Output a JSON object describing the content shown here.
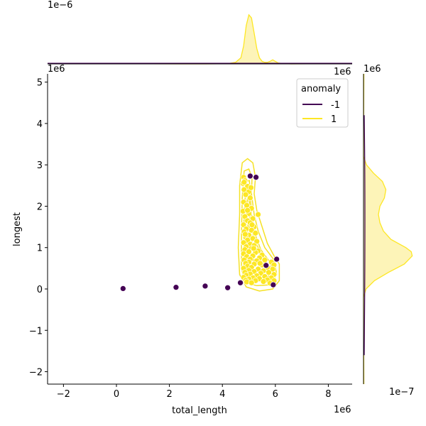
{
  "chart_data": {
    "type": "scatter",
    "xlabel": "total_length",
    "ylabel": "longest",
    "x_offset_label": "1e6",
    "y_offset_label": "1e6",
    "top_marginal_offset_label": "1e−6",
    "right_marginal_offset_label": "1e−7",
    "xlim": [
      -2.6,
      8.9
    ],
    "ylim": [
      -2.3,
      5.2
    ],
    "xticks": [
      -2,
      0,
      2,
      4,
      6,
      8
    ],
    "yticks": [
      -2,
      -1,
      0,
      1,
      2,
      3,
      4,
      5
    ],
    "xtick_labels": [
      "−2",
      "0",
      "2",
      "4",
      "6",
      "8"
    ],
    "ytick_labels": [
      "−2",
      "−1",
      "0",
      "1",
      "2",
      "3",
      "4",
      "5"
    ],
    "legend": {
      "title": "anomaly",
      "placement": "upper-right",
      "entries": [
        {
          "label": "-1",
          "color": "#440154"
        },
        {
          "label": "1",
          "color": "#fde725"
        }
      ]
    },
    "colors": {
      "anomaly": "#440154",
      "normal": "#fde725",
      "contour": "#f5e126",
      "marginal_fill": "#fdf4b8"
    },
    "series": [
      {
        "name": "-1",
        "color": "#440154",
        "points": [
          [
            0.25,
            0.01
          ],
          [
            2.25,
            0.04
          ],
          [
            3.35,
            0.07
          ],
          [
            4.2,
            0.03
          ],
          [
            4.68,
            0.15
          ],
          [
            5.05,
            2.73
          ],
          [
            5.27,
            2.7
          ],
          [
            5.92,
            0.1
          ],
          [
            6.05,
            0.72
          ],
          [
            5.65,
            0.57
          ]
        ]
      },
      {
        "name": "1",
        "color": "#fde725",
        "points": [
          [
            4.8,
            2.7
          ],
          [
            4.85,
            2.62
          ],
          [
            4.78,
            2.55
          ],
          [
            4.95,
            2.48
          ],
          [
            4.82,
            2.4
          ],
          [
            5.0,
            2.35
          ],
          [
            4.88,
            2.28
          ],
          [
            5.05,
            2.2
          ],
          [
            4.8,
            2.1
          ],
          [
            4.92,
            2.02
          ],
          [
            5.1,
            1.95
          ],
          [
            4.78,
            1.88
          ],
          [
            5.0,
            1.82
          ],
          [
            5.35,
            1.8
          ],
          [
            4.85,
            1.75
          ],
          [
            5.15,
            1.7
          ],
          [
            4.95,
            1.65
          ],
          [
            5.05,
            1.6
          ],
          [
            4.8,
            1.55
          ],
          [
            5.2,
            1.5
          ],
          [
            4.9,
            1.45
          ],
          [
            5.1,
            1.42
          ],
          [
            4.82,
            1.38
          ],
          [
            5.25,
            1.35
          ],
          [
            5.0,
            1.3
          ],
          [
            4.88,
            1.25
          ],
          [
            5.15,
            1.22
          ],
          [
            4.95,
            1.18
          ],
          [
            5.3,
            1.15
          ],
          [
            4.8,
            1.12
          ],
          [
            5.05,
            1.08
          ],
          [
            5.2,
            1.05
          ],
          [
            4.9,
            1.02
          ],
          [
            5.1,
            0.98
          ],
          [
            4.85,
            0.95
          ],
          [
            5.35,
            0.92
          ],
          [
            5.0,
            0.9
          ],
          [
            5.25,
            0.88
          ],
          [
            4.8,
            0.85
          ],
          [
            5.5,
            0.82
          ],
          [
            5.15,
            0.8
          ],
          [
            4.92,
            0.78
          ],
          [
            5.4,
            0.75
          ],
          [
            5.05,
            0.72
          ],
          [
            4.82,
            0.7
          ],
          [
            5.6,
            0.7
          ],
          [
            5.3,
            0.68
          ],
          [
            5.0,
            0.65
          ],
          [
            5.85,
            0.65
          ],
          [
            4.88,
            0.62
          ],
          [
            5.2,
            0.6
          ],
          [
            5.5,
            0.58
          ],
          [
            5.95,
            0.58
          ],
          [
            4.95,
            0.55
          ],
          [
            5.1,
            0.52
          ],
          [
            5.7,
            0.52
          ],
          [
            4.8,
            0.5
          ],
          [
            5.35,
            0.48
          ],
          [
            5.9,
            0.48
          ],
          [
            5.0,
            0.45
          ],
          [
            5.55,
            0.44
          ],
          [
            5.2,
            0.42
          ],
          [
            4.85,
            0.4
          ],
          [
            5.75,
            0.4
          ],
          [
            5.45,
            0.38
          ],
          [
            5.05,
            0.36
          ],
          [
            5.95,
            0.35
          ],
          [
            4.9,
            0.33
          ],
          [
            5.3,
            0.32
          ],
          [
            5.6,
            0.3
          ],
          [
            4.8,
            0.28
          ],
          [
            5.15,
            0.27
          ],
          [
            5.85,
            0.27
          ],
          [
            5.4,
            0.25
          ],
          [
            5.0,
            0.24
          ],
          [
            5.7,
            0.22
          ],
          [
            4.88,
            0.21
          ],
          [
            5.25,
            0.2
          ],
          [
            5.55,
            0.18
          ],
          [
            5.95,
            0.2
          ],
          [
            4.92,
            0.17
          ],
          [
            5.1,
            0.15
          ],
          [
            5.8,
            0.14
          ],
          [
            4.82,
            2.58
          ],
          [
            5.08,
            2.45
          ],
          [
            4.95,
            1.9
          ],
          [
            5.12,
            1.55
          ],
          [
            4.86,
            1.32
          ],
          [
            5.18,
            0.98
          ],
          [
            5.42,
            0.62
          ]
        ]
      }
    ],
    "marginal_x": {
      "color": "#fde725",
      "x": [
        3.4,
        3.8,
        4.2,
        4.5,
        4.7,
        4.8,
        4.9,
        5.0,
        5.1,
        5.2,
        5.3,
        5.4,
        5.5,
        5.6,
        5.7,
        5.8,
        5.9,
        6.0,
        6.1,
        6.3,
        6.6
      ],
      "density": [
        0.0,
        0.001,
        0.005,
        0.03,
        0.12,
        0.35,
        0.75,
        0.96,
        0.9,
        0.6,
        0.3,
        0.12,
        0.05,
        0.03,
        0.03,
        0.05,
        0.08,
        0.05,
        0.02,
        0.005,
        0.0
      ]
    },
    "marginal_y": {
      "color": "#fde725",
      "y": [
        -0.2,
        0.0,
        0.2,
        0.4,
        0.6,
        0.8,
        0.9,
        1.0,
        1.2,
        1.4,
        1.6,
        1.8,
        2.0,
        2.2,
        2.4,
        2.6,
        2.8,
        3.0,
        3.2
      ],
      "density": [
        0.0,
        0.05,
        0.22,
        0.5,
        0.82,
        0.98,
        0.96,
        0.85,
        0.55,
        0.4,
        0.33,
        0.3,
        0.33,
        0.42,
        0.45,
        0.38,
        0.2,
        0.06,
        0.0
      ]
    },
    "contours": [
      [
        [
          4.75,
          3.05
        ],
        [
          4.95,
          3.15
        ],
        [
          5.15,
          3.05
        ],
        [
          5.25,
          2.7
        ],
        [
          5.2,
          2.3
        ],
        [
          5.3,
          1.9
        ],
        [
          5.5,
          1.5
        ],
        [
          5.7,
          1.1
        ],
        [
          5.95,
          0.8
        ],
        [
          6.15,
          0.6
        ],
        [
          6.15,
          0.2
        ],
        [
          5.9,
          0.0
        ],
        [
          5.4,
          -0.05
        ],
        [
          4.9,
          0.05
        ],
        [
          4.65,
          0.35
        ],
        [
          4.6,
          1.0
        ],
        [
          4.65,
          1.8
        ],
        [
          4.65,
          2.5
        ]
      ],
      [
        [
          4.82,
          2.85
        ],
        [
          5.0,
          2.9
        ],
        [
          5.12,
          2.7
        ],
        [
          5.1,
          2.3
        ],
        [
          5.2,
          1.8
        ],
        [
          5.35,
          1.4
        ],
        [
          5.6,
          1.0
        ],
        [
          5.95,
          0.7
        ],
        [
          6.05,
          0.35
        ],
        [
          5.8,
          0.1
        ],
        [
          5.3,
          0.08
        ],
        [
          4.85,
          0.15
        ],
        [
          4.72,
          0.5
        ],
        [
          4.72,
          1.3
        ],
        [
          4.75,
          2.2
        ]
      ],
      [
        [
          4.9,
          2.6
        ],
        [
          5.02,
          2.62
        ],
        [
          5.05,
          2.3
        ],
        [
          5.1,
          1.8
        ],
        [
          5.25,
          1.3
        ],
        [
          5.45,
          0.95
        ],
        [
          5.85,
          0.6
        ],
        [
          5.7,
          0.2
        ],
        [
          5.2,
          0.18
        ],
        [
          4.85,
          0.3
        ],
        [
          4.8,
          0.9
        ],
        [
          4.82,
          1.8
        ]
      ],
      [
        [
          4.95,
          2.2
        ],
        [
          5.02,
          2.1
        ],
        [
          5.05,
          1.6
        ],
        [
          5.2,
          1.2
        ],
        [
          5.5,
          0.8
        ],
        [
          5.4,
          0.35
        ],
        [
          5.0,
          0.3
        ],
        [
          4.87,
          0.6
        ],
        [
          4.88,
          1.3
        ],
        [
          4.9,
          1.9
        ]
      ],
      [
        [
          4.98,
          1.7
        ],
        [
          5.05,
          1.3
        ],
        [
          5.2,
          0.9
        ],
        [
          5.15,
          0.5
        ],
        [
          4.95,
          0.48
        ],
        [
          4.92,
          0.9
        ],
        [
          4.95,
          1.4
        ]
      ]
    ]
  }
}
